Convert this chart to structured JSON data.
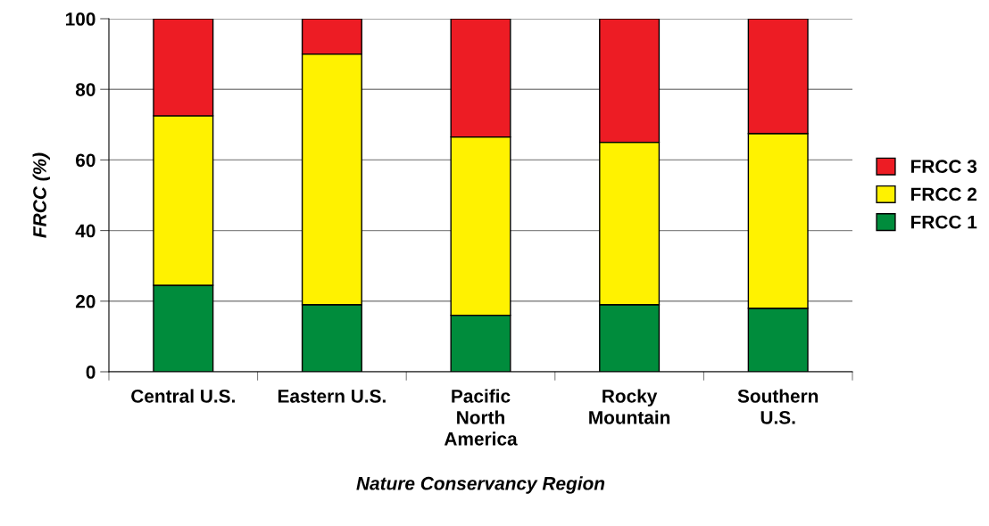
{
  "chart_data": {
    "type": "bar",
    "stacked": true,
    "xlabel": "Nature Conservancy Region",
    "ylabel": "FRCC (%)",
    "categories": [
      "Central U.S.",
      "Eastern U.S.",
      "Pacific\nNorth\nAmerica",
      "Rocky\nMountain",
      "Southern\nU.S."
    ],
    "series": [
      {
        "name": "FRCC 1",
        "color": "#008c3c",
        "values": [
          24.5,
          19,
          16,
          19,
          18
        ]
      },
      {
        "name": "FRCC 2",
        "color": "#fff200",
        "values": [
          48,
          71,
          50.5,
          46,
          49.5
        ]
      },
      {
        "name": "FRCC 3",
        "color": "#ed1c24",
        "values": [
          27.5,
          10,
          33.5,
          35,
          32.5
        ]
      }
    ],
    "ylim": [
      0,
      100
    ],
    "yticks": [
      0,
      20,
      40,
      60,
      80,
      100
    ],
    "grid": "y",
    "legend": "right"
  }
}
